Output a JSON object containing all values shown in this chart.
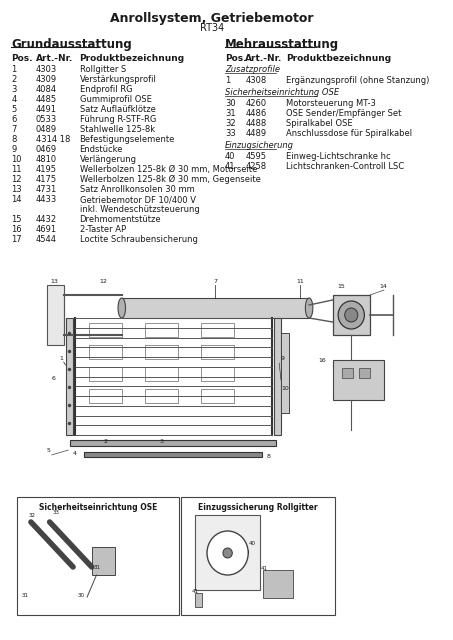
{
  "title": "Anrollsystem, Getriebemotor",
  "subtitle": "RT34",
  "left_heading": "Grundausstattung",
  "right_heading": "Mehrausstattung",
  "left_col_headers": [
    "Pos.",
    "Art.-Nr.",
    "Produktbezeichnung"
  ],
  "right_col_headers": [
    "Pos.",
    "Art.-Nr.",
    "Produktbezeichnung"
  ],
  "left_rows": [
    [
      "1",
      "4303",
      "Rollgitter S"
    ],
    [
      "2",
      "4309",
      "Verstärkungsprofil"
    ],
    [
      "3",
      "4084",
      "Endprofil RG"
    ],
    [
      "4",
      "4485",
      "Gummiprofil OSE"
    ],
    [
      "5",
      "4491",
      "Satz Auflaüfklötze"
    ],
    [
      "6",
      "0533",
      "Führung R-STF-RG"
    ],
    [
      "7",
      "0489",
      "Stahlwelle 125-8k"
    ],
    [
      "8",
      "4314 18",
      "Befestigungselemente"
    ],
    [
      "9",
      "0469",
      "Endstücke"
    ],
    [
      "10",
      "4810",
      "Verlängerung"
    ],
    [
      "11",
      "4195",
      "Wellerbolzen 125-8k Ø 30 mm, Motorseite"
    ],
    [
      "12",
      "4175",
      "Wellerbolzen 125-8k Ø 30 mm, Gegenseite"
    ],
    [
      "13",
      "4731",
      "Satz Anrollkonsolen 30 mm"
    ],
    [
      "14",
      "4433",
      "Getriebemotor DF 10/400 V\ninkl. Wendeschützsteuerung"
    ],
    [
      "15",
      "4432",
      "Drehmomentstütze"
    ],
    [
      "16",
      "4691",
      "2-Taster AP"
    ],
    [
      "17",
      "4544",
      "Loctite Schraubensicherung"
    ]
  ],
  "right_section1_label": "Zusatzprofile",
  "right_section1_rows": [
    [
      "1",
      "4308",
      "Ergänzungsprofil (ohne Stanzung)"
    ]
  ],
  "right_section2_label": "Sicherheitseinrichtung OSE",
  "right_section2_rows": [
    [
      "30",
      "4260",
      "Motorsteuerung MT-3"
    ],
    [
      "31",
      "4486",
      "OSE Sender/Empfänger Set"
    ],
    [
      "32",
      "4488",
      "Spiralkabel OSE"
    ],
    [
      "33",
      "4489",
      "Anschlussdose für Spiralkabel"
    ]
  ],
  "right_section3_label": "Einzugsicherung",
  "right_section3_rows": [
    [
      "40",
      "4595",
      "Einweg-Lichtschranke hc"
    ],
    [
      "41",
      "4258",
      "Lichtschranken-Controll LSC"
    ]
  ],
  "box1_label": "Sicherheitseinrichtung OSE",
  "box2_label": "Einzugssicherung Rollgitter",
  "bg_color": "#ffffff",
  "text_color": "#1a1a1a",
  "heading_underline": true
}
